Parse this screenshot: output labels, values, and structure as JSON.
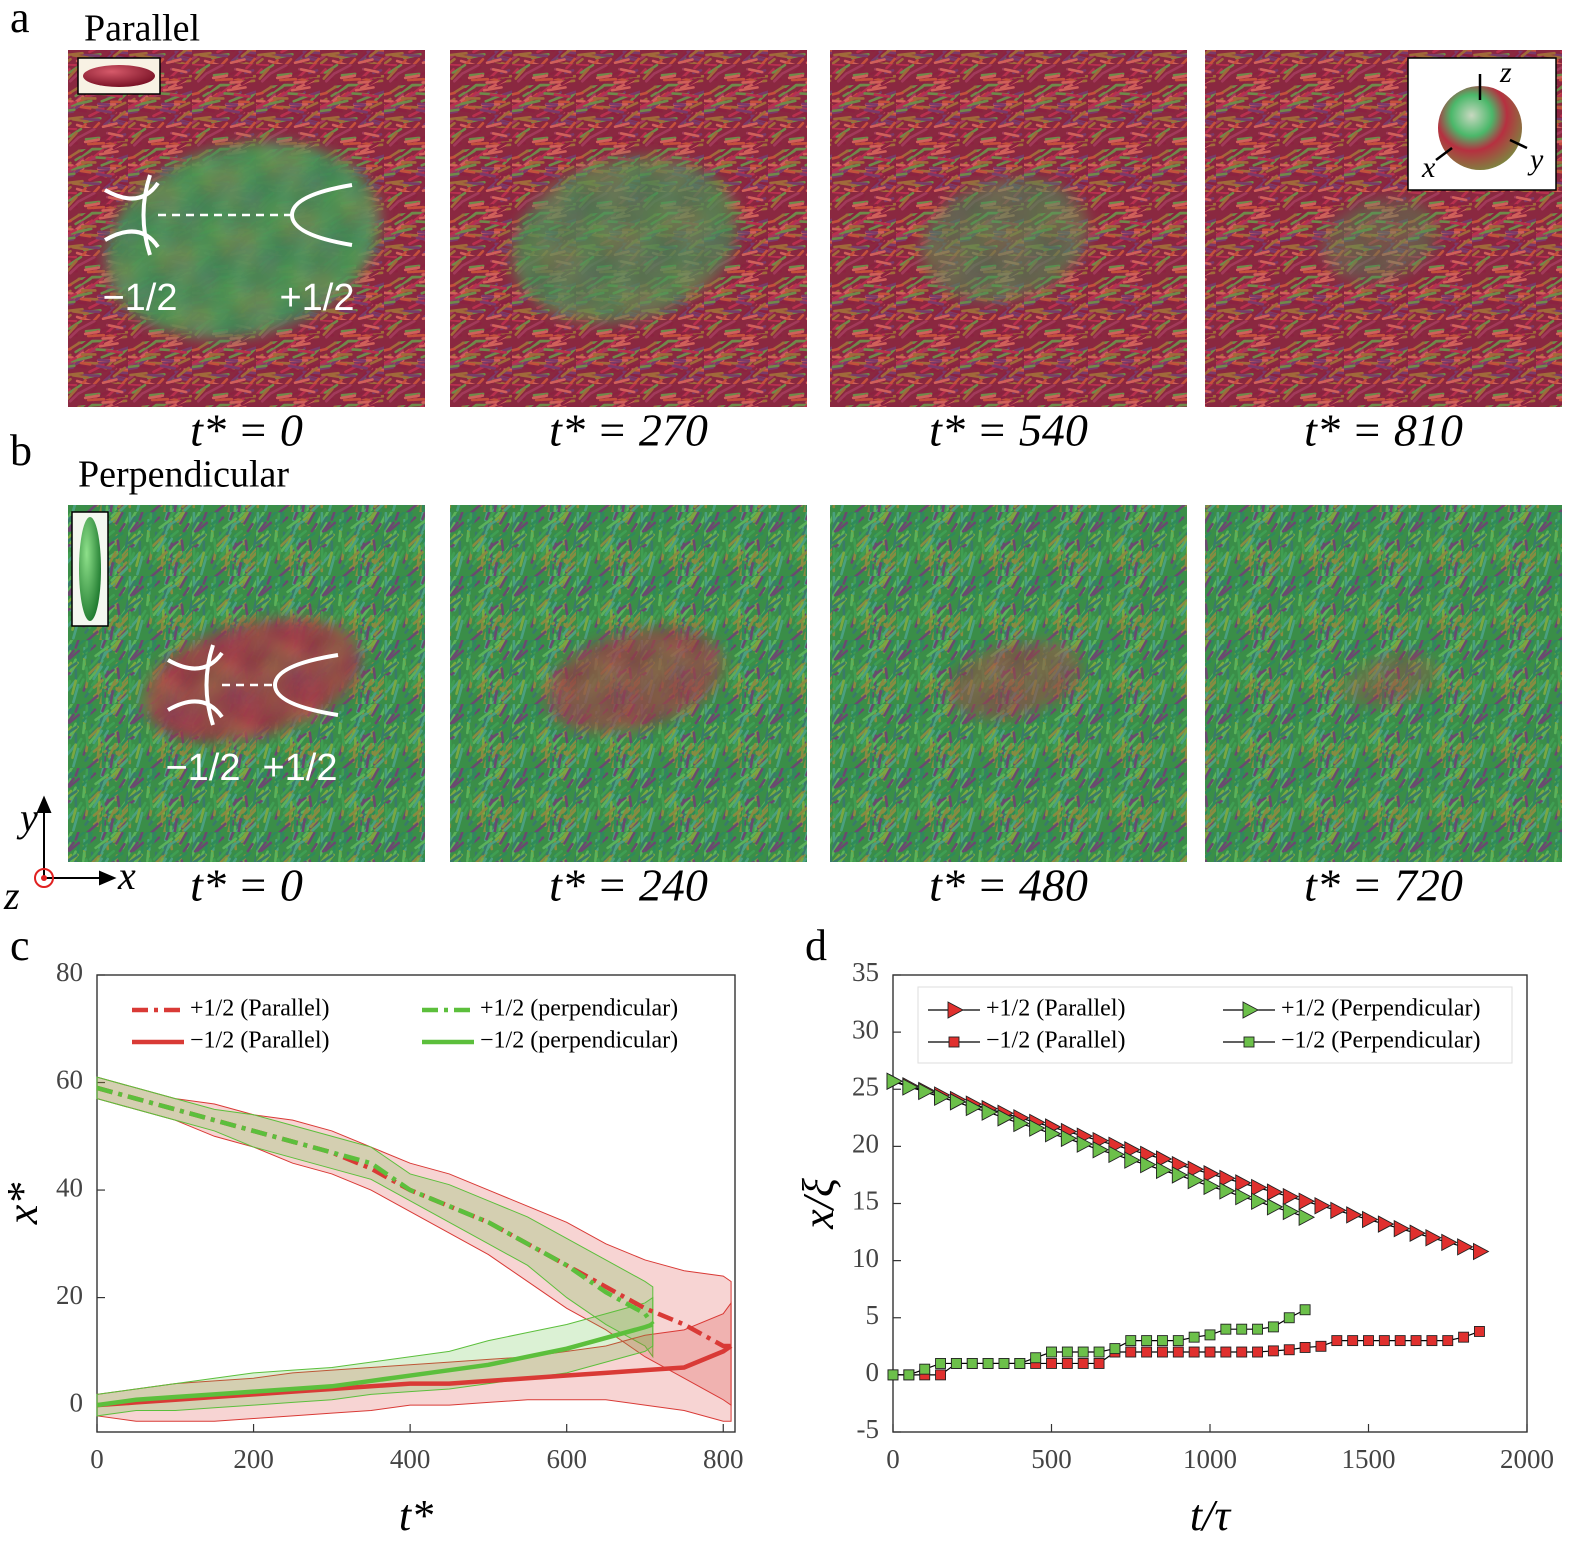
{
  "panels": [
    {
      "label": "a",
      "title": "Parallel",
      "times": [
        "t* = 0",
        "t* = 270",
        "t* = 540",
        "t* = 810"
      ],
      "defects": [
        "−1/2",
        "+1/2"
      ]
    },
    {
      "label": "b",
      "title": "Perpendicular",
      "times": [
        "t* = 0",
        "t* = 240",
        "t* = 480",
        "t* = 720"
      ],
      "defects": [
        "−1/2",
        "+1/2"
      ]
    }
  ],
  "sphere_axes": [
    "z",
    "x",
    "y"
  ],
  "frame_axes": [
    "y",
    "x",
    "z"
  ],
  "chart_data": [
    {
      "type": "line",
      "label": "c",
      "xlabel": "t*",
      "ylabel": "x*",
      "xlim": [
        0,
        815
      ],
      "ylim": [
        -5,
        80
      ],
      "xticks": [
        0,
        200,
        400,
        600,
        800
      ],
      "yticks": [
        0,
        20,
        40,
        60,
        80
      ],
      "grid": false,
      "legend": "upper center",
      "series": [
        {
          "name": "+1/2 (Parallel)",
          "color": "#d93a36",
          "dash": "dashdot",
          "x": [
            0,
            50,
            100,
            150,
            200,
            250,
            300,
            350,
            400,
            450,
            500,
            550,
            600,
            650,
            700,
            750,
            800,
            810
          ],
          "values": [
            59,
            57,
            55,
            53,
            51,
            49,
            47,
            44,
            40,
            37,
            34,
            30,
            26,
            22,
            18,
            15,
            11,
            11
          ],
          "upper": [
            61,
            59,
            57,
            56,
            54,
            53,
            51,
            48,
            45,
            43,
            40,
            37,
            34,
            30,
            27,
            25,
            24,
            23
          ],
          "lower": [
            57,
            55,
            53,
            50,
            48,
            45,
            43,
            40,
            36,
            32,
            28,
            23,
            18,
            14,
            9,
            5,
            1,
            0
          ]
        },
        {
          "name": "+1/2 (perpendicular)",
          "color": "#5cbf3c",
          "dash": "dashdot",
          "x": [
            0,
            50,
            100,
            150,
            200,
            250,
            300,
            350,
            400,
            450,
            500,
            550,
            600,
            650,
            700,
            710
          ],
          "values": [
            59,
            57,
            55,
            53,
            51,
            49,
            47,
            45,
            40,
            37,
            34,
            30,
            26,
            21,
            17,
            15
          ],
          "upper": [
            61,
            59,
            57,
            55,
            54,
            52,
            50,
            48,
            43,
            41,
            38,
            35,
            31,
            27,
            23,
            22
          ],
          "lower": [
            57,
            55,
            53,
            51,
            48,
            46,
            44,
            42,
            38,
            34,
            30,
            26,
            20,
            15,
            11,
            9
          ]
        },
        {
          "name": "−1/2 (Parallel)",
          "color": "#d93a36",
          "dash": "solid",
          "x": [
            0,
            50,
            100,
            150,
            200,
            250,
            300,
            350,
            400,
            450,
            500,
            550,
            600,
            650,
            700,
            750,
            800,
            810
          ],
          "values": [
            0,
            0.5,
            1,
            1.5,
            2,
            2.5,
            3,
            3.5,
            4,
            4,
            4.5,
            5,
            5.5,
            6,
            6.5,
            7,
            10,
            11
          ],
          "upper": [
            2,
            3,
            4,
            4.5,
            5,
            6,
            6.5,
            7,
            7.5,
            8,
            8.5,
            9,
            10,
            11,
            13,
            14,
            17,
            19
          ],
          "lower": [
            -2,
            -3,
            -3,
            -3,
            -2.5,
            -2,
            -1.5,
            -1,
            0,
            0,
            0.5,
            1,
            1,
            1,
            0,
            -1,
            -3,
            -3
          ]
        },
        {
          "name": "−1/2 (perpendicular)",
          "color": "#5cbf3c",
          "dash": "solid",
          "x": [
            0,
            50,
            100,
            150,
            200,
            250,
            300,
            350,
            400,
            450,
            500,
            550,
            600,
            650,
            700,
            710
          ],
          "values": [
            0,
            1,
            1.5,
            2,
            2.5,
            3,
            3.5,
            4.5,
            5.5,
            6.5,
            7.5,
            9,
            10.5,
            12.5,
            14.5,
            15
          ],
          "upper": [
            2,
            3,
            4,
            5,
            6,
            6.5,
            7,
            8,
            9,
            10,
            12,
            13.5,
            15,
            17,
            19,
            20
          ],
          "lower": [
            -2,
            -1,
            -1,
            -0.5,
            0,
            0.5,
            1,
            2,
            2.5,
            3,
            4,
            5,
            6,
            8,
            10,
            11
          ]
        }
      ]
    },
    {
      "type": "line",
      "label": "d",
      "xlabel": "t/τ",
      "ylabel": "x/ξ",
      "xlim": [
        0,
        2000
      ],
      "ylim": [
        -5,
        35
      ],
      "xticks": [
        0,
        500,
        1000,
        1500,
        2000
      ],
      "yticks": [
        -5,
        0,
        5,
        10,
        15,
        20,
        25,
        30,
        35
      ],
      "grid": false,
      "legend": "upper center",
      "legend_frame": true,
      "line_color": "#000000",
      "series": [
        {
          "name": "+1/2 (Parallel)",
          "color": "#e0302e",
          "marker": "triangle",
          "x": [
            0,
            50,
            100,
            150,
            200,
            250,
            300,
            350,
            400,
            450,
            500,
            550,
            600,
            650,
            700,
            750,
            800,
            850,
            900,
            950,
            1000,
            1050,
            1100,
            1150,
            1200,
            1250,
            1300,
            1350,
            1400,
            1450,
            1500,
            1550,
            1600,
            1650,
            1700,
            1750,
            1800,
            1850
          ],
          "values": [
            25.7,
            25.3,
            24.9,
            24.5,
            24.1,
            23.7,
            23.3,
            22.9,
            22.5,
            22.1,
            21.7,
            21.3,
            20.9,
            20.5,
            20.1,
            19.7,
            19.3,
            18.9,
            18.4,
            18.0,
            17.6,
            17.2,
            16.8,
            16.4,
            16.0,
            15.6,
            15.2,
            14.8,
            14.4,
            14.0,
            13.6,
            13.2,
            12.8,
            12.4,
            12.0,
            11.6,
            11.2,
            10.8
          ]
        },
        {
          "name": "+1/2 (Perpendicular)",
          "color": "#6cc04a",
          "marker": "triangle",
          "x": [
            0,
            50,
            100,
            150,
            200,
            250,
            300,
            350,
            400,
            450,
            500,
            550,
            600,
            650,
            700,
            750,
            800,
            850,
            900,
            950,
            1000,
            1050,
            1100,
            1150,
            1200,
            1250,
            1300
          ],
          "values": [
            25.7,
            25.2,
            24.8,
            24.3,
            23.9,
            23.4,
            23.0,
            22.5,
            22.0,
            21.6,
            21.1,
            20.7,
            20.2,
            19.7,
            19.3,
            18.8,
            18.4,
            17.9,
            17.5,
            17.0,
            16.5,
            16.1,
            15.6,
            15.2,
            14.7,
            14.3,
            13.8
          ]
        },
        {
          "name": "−1/2 (Parallel)",
          "color": "#e0302e",
          "marker": "square",
          "x": [
            0,
            50,
            100,
            150,
            200,
            250,
            300,
            350,
            400,
            450,
            500,
            550,
            600,
            650,
            700,
            750,
            800,
            850,
            900,
            950,
            1000,
            1050,
            1100,
            1150,
            1200,
            1250,
            1300,
            1350,
            1400,
            1450,
            1500,
            1550,
            1600,
            1650,
            1700,
            1750,
            1800,
            1850
          ],
          "values": [
            0,
            0,
            0,
            0,
            1,
            1,
            1,
            1,
            1,
            1,
            1,
            1,
            1,
            1,
            2,
            2,
            2,
            2,
            2,
            2,
            2,
            2,
            2,
            2,
            2.1,
            2.2,
            2.4,
            2.5,
            3,
            3,
            3,
            3,
            3,
            3,
            3,
            3,
            3.3,
            3.8
          ]
        },
        {
          "name": "−1/2 (Perpendicular)",
          "color": "#6cc04a",
          "marker": "square",
          "x": [
            0,
            50,
            100,
            150,
            200,
            250,
            300,
            350,
            400,
            450,
            500,
            550,
            600,
            650,
            700,
            750,
            800,
            850,
            900,
            950,
            1000,
            1050,
            1100,
            1150,
            1200,
            1250,
            1300
          ],
          "values": [
            0,
            0,
            0.5,
            1,
            1,
            1,
            1,
            1,
            1,
            1.5,
            2,
            2,
            2,
            2,
            2.3,
            3,
            3,
            3,
            3,
            3.3,
            3.5,
            4,
            4,
            4,
            4.2,
            5,
            5.7
          ]
        }
      ]
    }
  ]
}
